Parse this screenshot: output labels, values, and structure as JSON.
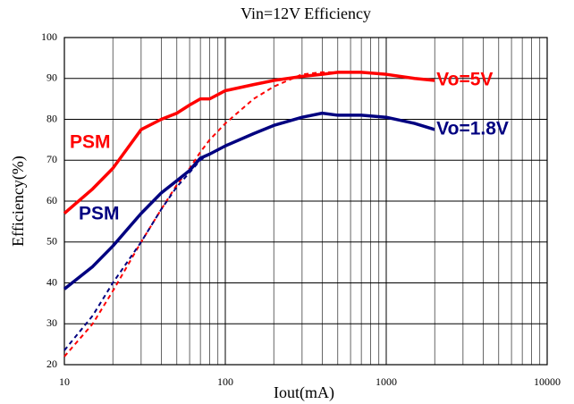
{
  "chart_data": {
    "type": "line",
    "title": "Vin=12V Efficiency",
    "xlabel": "Iout(mA)",
    "ylabel": "Efficiency(%)",
    "x": [
      10,
      15,
      20,
      30,
      40,
      50,
      60,
      70,
      80,
      100,
      150,
      200,
      300,
      400,
      500,
      700,
      1000,
      1500,
      2000
    ],
    "series": [
      {
        "name": "Vo=5V",
        "color": "#ff0000",
        "dashed": false,
        "values": [
          57,
          63,
          68,
          77.5,
          80,
          81.5,
          83.5,
          85,
          85,
          87,
          88.5,
          89.5,
          90.5,
          91,
          91.5,
          91.5,
          91,
          90,
          89.5
        ]
      },
      {
        "color": "#ff0000",
        "dashed": true,
        "values": [
          22,
          30,
          38,
          50,
          58,
          64,
          68,
          72,
          75,
          79,
          85,
          88,
          91,
          91.5,
          91.5,
          91.5,
          91,
          90,
          89.5
        ]
      },
      {
        "name": "Vo=1.8V",
        "color": "#000080",
        "dashed": false,
        "values": [
          38.5,
          44,
          49,
          57,
          62,
          65,
          67.5,
          70.5,
          71.5,
          73.5,
          76.5,
          78.5,
          80.5,
          81.5,
          81,
          81,
          80.5,
          79,
          77.5
        ]
      },
      {
        "color": "#000080",
        "dashed": true,
        "values": [
          23.5,
          32,
          40,
          50,
          58,
          63.5,
          67,
          70,
          71.5,
          73.5,
          76.5,
          78.5,
          80.5,
          81.5,
          81,
          81,
          80.5,
          79,
          77.5
        ]
      }
    ],
    "annotations": [
      {
        "text": "PSM",
        "color": "#ff0000"
      },
      {
        "text": "PSM",
        "color": "#000080"
      }
    ],
    "xlog": true,
    "xlim": [
      10,
      10000
    ],
    "xticks": [
      10,
      100,
      1000,
      10000
    ],
    "xminorticks": [
      20,
      30,
      40,
      50,
      60,
      70,
      80,
      90,
      200,
      300,
      400,
      500,
      600,
      700,
      800,
      900,
      2000,
      3000,
      4000,
      5000,
      6000,
      7000,
      8000,
      9000
    ],
    "ylim": [
      20,
      100
    ],
    "yticks": [
      20,
      30,
      40,
      50,
      60,
      70,
      80,
      90,
      100
    ],
    "grid": true
  }
}
